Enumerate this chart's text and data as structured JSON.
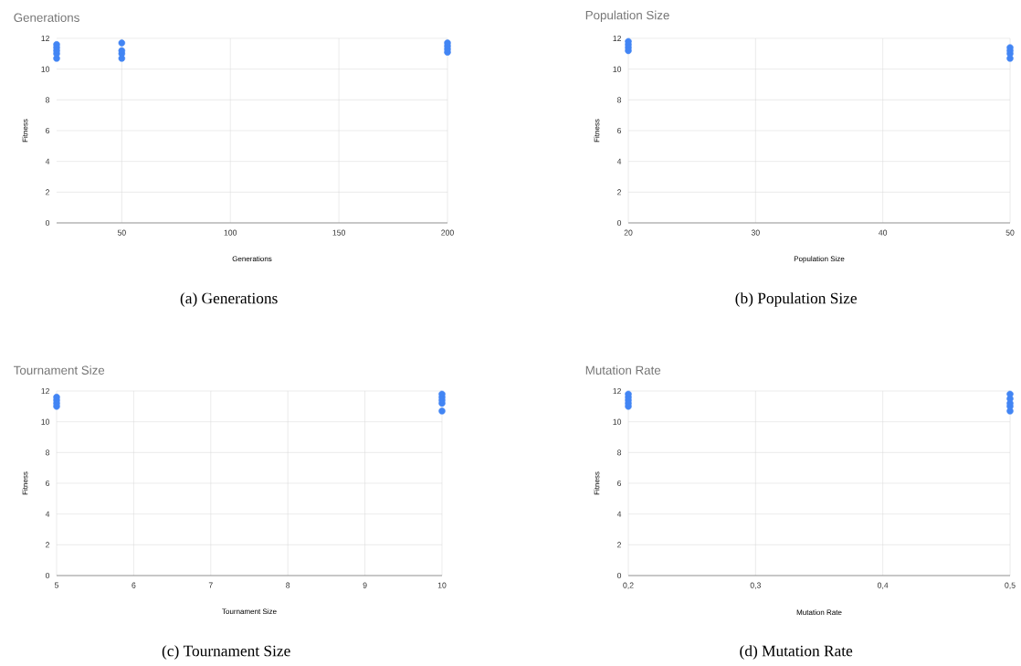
{
  "chart_data": [
    {
      "type": "scatter",
      "title": "Generations",
      "xlabel": "Generations",
      "ylabel": "Fitness",
      "color": "#4285f4",
      "marker": "circle",
      "grid": true,
      "x": [
        20,
        20,
        20,
        20,
        20,
        50,
        50,
        50,
        50,
        200,
        200,
        200,
        200
      ],
      "values": [
        10.7,
        11.0,
        11.2,
        11.4,
        11.6,
        10.7,
        11.0,
        11.2,
        11.7,
        11.1,
        11.3,
        11.5,
        11.7
      ],
      "xlim": [
        20,
        200
      ],
      "xticks": [
        50,
        100,
        150,
        200
      ],
      "ylim": [
        0,
        12
      ],
      "yticks": [
        0,
        2,
        4,
        6,
        8,
        10,
        12
      ],
      "annotations": [
        "(a) Generations"
      ]
    },
    {
      "type": "scatter",
      "title": "Population Size",
      "xlabel": "Population Size",
      "ylabel": "Fitness",
      "color": "#4285f4",
      "marker": "circle",
      "grid": true,
      "x": [
        20,
        20,
        20,
        20,
        50,
        50,
        50,
        50
      ],
      "values": [
        11.2,
        11.4,
        11.6,
        11.8,
        10.7,
        11.0,
        11.2,
        11.4
      ],
      "xlim": [
        20,
        50
      ],
      "xticks": [
        20,
        30,
        40,
        50
      ],
      "ylim": [
        0,
        12
      ],
      "yticks": [
        0,
        2,
        4,
        6,
        8,
        10,
        12
      ],
      "annotations": [
        "(b) Population Size"
      ]
    },
    {
      "type": "scatter",
      "title": "Tournament Size",
      "xlabel": "Tournament Size",
      "ylabel": "Fitness",
      "color": "#4285f4",
      "marker": "circle",
      "grid": true,
      "x": [
        5,
        5,
        5,
        5,
        10,
        10,
        10,
        10,
        10
      ],
      "values": [
        11.0,
        11.2,
        11.4,
        11.6,
        10.7,
        11.2,
        11.4,
        11.6,
        11.8
      ],
      "xlim": [
        5,
        10
      ],
      "xticks": [
        5,
        6,
        7,
        8,
        9,
        10
      ],
      "ylim": [
        0,
        12
      ],
      "yticks": [
        0,
        2,
        4,
        6,
        8,
        10,
        12
      ],
      "annotations": [
        "(c) Tournament Size"
      ]
    },
    {
      "type": "scatter",
      "title": "Mutation Rate",
      "xlabel": "Mutation Rate",
      "ylabel": "Fitness",
      "color": "#4285f4",
      "marker": "circle",
      "grid": true,
      "x": [
        0.2,
        0.2,
        0.2,
        0.2,
        0.2,
        0.5,
        0.5,
        0.5,
        0.5,
        0.5
      ],
      "values": [
        11.0,
        11.2,
        11.4,
        11.6,
        11.8,
        10.7,
        11.0,
        11.2,
        11.5,
        11.8
      ],
      "xlim": [
        0.2,
        0.5
      ],
      "xticks": [
        {
          "value": 0.2,
          "label": "0,2"
        },
        {
          "value": 0.3,
          "label": "0,3"
        },
        {
          "value": 0.4,
          "label": "0,4"
        },
        {
          "value": 0.5,
          "label": "0,5"
        }
      ],
      "ylim": [
        0,
        12
      ],
      "yticks": [
        0,
        2,
        4,
        6,
        8,
        10,
        12
      ],
      "annotations": [
        "(d) Mutation Rate"
      ]
    }
  ]
}
